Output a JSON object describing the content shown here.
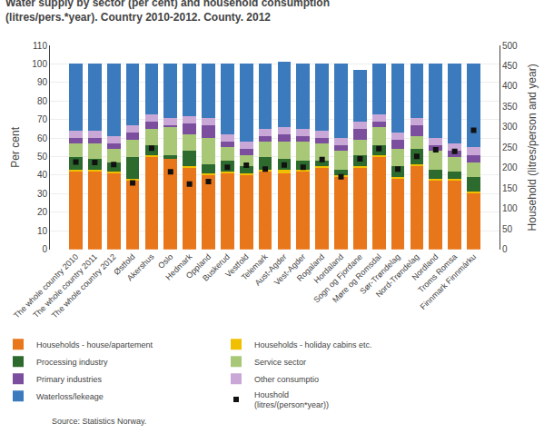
{
  "chart_data": {
    "type": "bar",
    "stacked": true,
    "title": "Water supply by sector (per cent) and household consumption\n(litres/pers.*year). Country 2010-2012. County. 2012",
    "source": "Source: Statistics Norway.",
    "ylabel": "Per cent",
    "y2label": "Household (litres/person and year)",
    "categories": [
      "The whole country 2010",
      "The whole country 2011",
      "The whole country 2012",
      "Østfold",
      "Akershus",
      "Oslo",
      "Hedmark",
      "Oppland",
      "Buskerud",
      "Vestfold",
      "Telemark",
      "Aust-Agder",
      "Vest-Agder",
      "Rogaland",
      "Hordaland",
      "Sogn og Fjordane",
      "Møre og Romsdal",
      "Sør-Trøndelag",
      "Nord-Trøndelag",
      "Nordland",
      "Troms Romsa",
      "Finnmark Finnmárku"
    ],
    "series": [
      {
        "name": "Households - house/apartement",
        "color": "#E8761A",
        "values": [
          42,
          42,
          41,
          37,
          50,
          49,
          44,
          40,
          41,
          40,
          42,
          41,
          42,
          44,
          39,
          44,
          50,
          38,
          45,
          37,
          37,
          30
        ]
      },
      {
        "name": "Households - holiday cabins etc.",
        "color": "#F0C000",
        "values": [
          1,
          1,
          1,
          1,
          1,
          0,
          1,
          1,
          1,
          1,
          1,
          2,
          1,
          1,
          1,
          1,
          1,
          1,
          1,
          1,
          1,
          1
        ]
      },
      {
        "name": "Processing industry",
        "color": "#2D6A2D",
        "values": [
          7,
          6,
          5,
          12,
          5,
          2,
          8,
          5,
          6,
          4,
          7,
          6,
          5,
          3,
          3,
          6,
          5,
          6,
          8,
          5,
          4,
          8
        ]
      },
      {
        "name": "Service sector",
        "color": "#A8C878",
        "values": [
          7,
          8,
          7,
          9,
          9,
          15,
          9,
          14,
          7,
          6,
          8,
          9,
          10,
          9,
          10,
          8,
          10,
          9,
          7,
          10,
          8,
          8
        ]
      },
      {
        "name": "Primary industries",
        "color": "#7B4F9E",
        "values": [
          3,
          3,
          3,
          4,
          4,
          1,
          6,
          7,
          3,
          3,
          3,
          4,
          3,
          3,
          3,
          6,
          3,
          5,
          6,
          3,
          3,
          4
        ]
      },
      {
        "name": "Other consumptio",
        "color": "#C9A8D8",
        "values": [
          4,
          4,
          4,
          4,
          4,
          4,
          4,
          4,
          4,
          4,
          4,
          4,
          4,
          4,
          4,
          4,
          4,
          4,
          4,
          4,
          4,
          4
        ]
      },
      {
        "name": "Waterloss/lekeage",
        "color": "#3C7ABE",
        "values": [
          36,
          36,
          39,
          33,
          27,
          29,
          28,
          29,
          38,
          42,
          35,
          35,
          35,
          36,
          40,
          28,
          27,
          37,
          29,
          40,
          43,
          45
        ]
      },
      {
        "name": "Houshold\n(litres/(person*year))",
        "color": "#111111",
        "type": "scatter",
        "marker": "square",
        "axis": "y2",
        "values": [
          214,
          213,
          208,
          163,
          248,
          190,
          160,
          166,
          201,
          206,
          197,
          207,
          201,
          220,
          178,
          222,
          247,
          197,
          228,
          244,
          240,
          292
        ]
      }
    ],
    "ylim": [
      0,
      110
    ],
    "yticks": [
      0,
      10,
      20,
      30,
      40,
      50,
      60,
      70,
      80,
      90,
      100,
      110
    ],
    "y2lim": [
      0,
      500
    ],
    "y2ticks": [
      0,
      50,
      100,
      150,
      200,
      250,
      300,
      350,
      400,
      450,
      500
    ],
    "grid": true,
    "legend": "bottom"
  }
}
